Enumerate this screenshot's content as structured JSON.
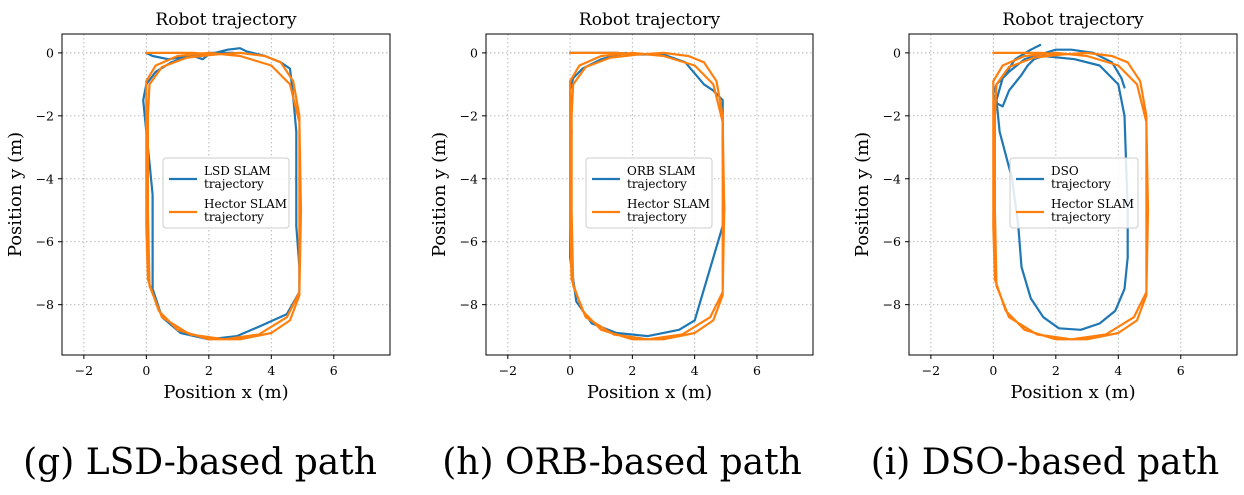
{
  "colors": {
    "series_a": "#1f77b4",
    "series_b": "#ff7f0e",
    "grid": "#b0b0b0"
  },
  "captions": [
    "(g) LSD-based path",
    "(h) ORB-based path",
    "(i) DSO-based path"
  ],
  "chart_data": [
    {
      "type": "line",
      "title": "Robot trajectory",
      "xlabel": "Position x (m)",
      "ylabel": "Position y (m)",
      "xlim": [
        -2.7,
        7.8
      ],
      "ylim": [
        -9.6,
        0.6
      ],
      "xticks": [
        -2,
        0,
        2,
        4,
        6
      ],
      "yticks": [
        0,
        -2,
        -4,
        -6,
        -8
      ],
      "tick_labels_x": [
        "−2",
        "0",
        "2",
        "4",
        "6"
      ],
      "tick_labels_y": [
        "0",
        "−2",
        "−4",
        "−6",
        "−8"
      ],
      "grid": true,
      "legend": "center-left",
      "series": [
        {
          "name": "LSD SLAM trajectory",
          "legend_lines": [
            "LSD SLAM",
            "trajectory"
          ],
          "color": "#1f77b4",
          "x": [
            0.0,
            0.0,
            0.2,
            0.7,
            1.5,
            1.8,
            2.0,
            2.6,
            3.0,
            3.2,
            3.8,
            4.3,
            4.6,
            4.7,
            4.8,
            4.8,
            4.8,
            4.9,
            4.9,
            4.5,
            3.6,
            2.9,
            2.0,
            1.1,
            0.5,
            0.2,
            0.2,
            0.2,
            0.1,
            0.0,
            -0.1,
            0.0,
            0.3,
            0.8,
            1.4,
            2.0,
            2.8
          ],
          "y": [
            0.0,
            0.0,
            -0.1,
            -0.2,
            -0.1,
            -0.2,
            -0.05,
            0.1,
            0.15,
            0.05,
            -0.1,
            -0.3,
            -0.5,
            -1.4,
            -2.5,
            -4.0,
            -5.5,
            -6.8,
            -7.6,
            -8.3,
            -8.7,
            -9.0,
            -9.1,
            -8.9,
            -8.4,
            -7.5,
            -6.0,
            -4.5,
            -3.5,
            -2.5,
            -1.5,
            -1.0,
            -0.6,
            -0.3,
            -0.1,
            0.0,
            0.0
          ]
        },
        {
          "name": "Hector SLAM trajectory",
          "legend_lines": [
            "Hector SLAM",
            "trajectory"
          ],
          "color": "#ff7f0e",
          "x": [
            0.0,
            1.5,
            2.2,
            3.0,
            3.8,
            4.3,
            4.7,
            4.9,
            4.9,
            4.9,
            4.9,
            4.6,
            4.0,
            3.0,
            2.0,
            1.0,
            0.4,
            0.05,
            0.0,
            0.0,
            0.0,
            0.0,
            0.3,
            1.0,
            2.0,
            3.0,
            4.0,
            4.6,
            4.9,
            4.95,
            4.9,
            4.5,
            3.6,
            2.5,
            1.4,
            0.5,
            0.1,
            0.05,
            0.05,
            0.1,
            0.5,
            1.3,
            2.2
          ],
          "y": [
            0.0,
            0.0,
            -0.05,
            0.0,
            -0.1,
            -0.3,
            -0.9,
            -2.0,
            -4.0,
            -6.0,
            -7.7,
            -8.5,
            -8.9,
            -9.1,
            -9.1,
            -8.8,
            -8.2,
            -7.2,
            -5.5,
            -3.5,
            -1.5,
            -0.9,
            -0.4,
            -0.1,
            0.0,
            -0.1,
            -0.4,
            -1.0,
            -2.2,
            -5.0,
            -7.6,
            -8.4,
            -8.95,
            -9.1,
            -8.95,
            -8.4,
            -7.4,
            -5.0,
            -2.0,
            -1.0,
            -0.45,
            -0.15,
            -0.05
          ]
        }
      ]
    },
    {
      "type": "line",
      "title": "Robot trajectory",
      "xlabel": "Position x (m)",
      "ylabel": "Position y (m)",
      "xlim": [
        -2.7,
        7.8
      ],
      "ylim": [
        -9.6,
        0.6
      ],
      "xticks": [
        -2,
        0,
        2,
        4,
        6
      ],
      "yticks": [
        0,
        -2,
        -4,
        -6,
        -8
      ],
      "tick_labels_x": [
        "−2",
        "0",
        "2",
        "4",
        "6"
      ],
      "tick_labels_y": [
        "0",
        "−2",
        "−4",
        "−6",
        "−8"
      ],
      "grid": true,
      "legend": "center-left",
      "series": [
        {
          "name": "ORB SLAM trajectory",
          "legend_lines": [
            "ORB SLAM",
            "trajectory"
          ],
          "color": "#1f77b4",
          "x": [
            0.0,
            1.5,
            2.2,
            3.0,
            3.7,
            4.3,
            4.6,
            4.9,
            4.9,
            4.95,
            4.9,
            4.0,
            3.5,
            2.5,
            1.5,
            0.7,
            0.2,
            0.0,
            0.0,
            0.05,
            0.0,
            0.1,
            0.4,
            1.0,
            1.8
          ],
          "y": [
            0.0,
            0.0,
            -0.05,
            -0.05,
            -0.3,
            -1.0,
            -1.2,
            -1.5,
            -3.0,
            -5.0,
            -5.5,
            -8.5,
            -8.8,
            -9.0,
            -8.9,
            -8.6,
            -7.9,
            -6.5,
            -4.5,
            -2.5,
            -1.2,
            -0.8,
            -0.5,
            -0.2,
            0.0
          ]
        },
        {
          "name": "Hector SLAM trajectory",
          "legend_lines": [
            "Hector SLAM",
            "trajectory"
          ],
          "color": "#ff7f0e",
          "x": [
            0.0,
            1.5,
            2.2,
            3.0,
            3.8,
            4.3,
            4.7,
            4.9,
            4.9,
            4.9,
            4.9,
            4.6,
            4.0,
            3.0,
            2.0,
            1.0,
            0.4,
            0.05,
            0.0,
            0.0,
            0.0,
            0.0,
            0.3,
            1.0,
            2.0,
            3.0,
            4.0,
            4.6,
            4.9,
            4.95,
            4.9,
            4.5,
            3.6,
            2.5,
            1.4,
            0.5,
            0.1,
            0.05,
            0.05,
            0.1,
            0.5,
            1.3,
            2.2
          ],
          "y": [
            0.0,
            0.0,
            -0.05,
            0.0,
            -0.1,
            -0.3,
            -0.9,
            -2.0,
            -4.0,
            -6.0,
            -7.7,
            -8.5,
            -8.9,
            -9.1,
            -9.1,
            -8.8,
            -8.2,
            -7.2,
            -5.5,
            -3.5,
            -1.5,
            -0.9,
            -0.4,
            -0.1,
            0.0,
            -0.1,
            -0.4,
            -1.0,
            -2.2,
            -5.0,
            -7.6,
            -8.4,
            -8.95,
            -9.1,
            -8.95,
            -8.4,
            -7.4,
            -5.0,
            -2.0,
            -1.0,
            -0.45,
            -0.15,
            -0.05
          ]
        }
      ]
    },
    {
      "type": "line",
      "title": "Robot trajectory",
      "xlabel": "Position x (m)",
      "ylabel": "Position y (m)",
      "xlim": [
        -2.7,
        7.8
      ],
      "ylim": [
        -9.6,
        0.6
      ],
      "xticks": [
        -2,
        0,
        2,
        4,
        6
      ],
      "yticks": [
        0,
        -2,
        -4,
        -6,
        -8
      ],
      "tick_labels_x": [
        "−2",
        "0",
        "2",
        "4",
        "6"
      ],
      "tick_labels_y": [
        "0",
        "−2",
        "−4",
        "−6",
        "−8"
      ],
      "grid": true,
      "legend": "center-left",
      "series": [
        {
          "name": "DSO trajectory",
          "legend_lines": [
            "DSO",
            "trajectory"
          ],
          "color": "#1f77b4",
          "x": [
            1.5,
            1.2,
            0.7,
            0.3,
            0.1,
            0.2,
            0.6,
            0.8,
            0.9,
            1.2,
            1.6,
            2.1,
            2.8,
            3.4,
            3.9,
            4.2,
            4.3,
            4.3,
            4.25,
            4.2,
            4.0,
            3.4,
            2.6,
            1.6,
            1.3,
            1.1,
            0.9,
            0.5,
            0.3,
            0.1,
            0.0,
            0.1,
            0.5,
            1.0,
            2.0,
            2.5,
            3.2,
            3.8,
            4.1,
            4.2
          ],
          "y": [
            0.25,
            0.1,
            -0.2,
            -0.8,
            -1.5,
            -2.5,
            -4.0,
            -5.5,
            -6.8,
            -7.8,
            -8.4,
            -8.75,
            -8.8,
            -8.6,
            -8.2,
            -7.5,
            -6.5,
            -5.0,
            -3.5,
            -2.0,
            -1.0,
            -0.4,
            -0.2,
            -0.1,
            -0.2,
            -0.4,
            -0.7,
            -1.2,
            -1.7,
            -1.6,
            -1.3,
            -1.0,
            -0.6,
            -0.2,
            0.1,
            0.1,
            0.0,
            -0.3,
            -0.8,
            -1.1
          ]
        },
        {
          "name": "Hector SLAM trajectory",
          "legend_lines": [
            "Hector SLAM",
            "trajectory"
          ],
          "color": "#ff7f0e",
          "x": [
            0.0,
            1.5,
            2.2,
            3.0,
            3.8,
            4.3,
            4.7,
            4.9,
            4.9,
            4.9,
            4.9,
            4.6,
            4.0,
            3.0,
            2.0,
            1.0,
            0.4,
            0.05,
            0.0,
            0.0,
            0.0,
            0.0,
            0.3,
            1.0,
            2.0,
            3.0,
            4.0,
            4.6,
            4.9,
            4.95,
            4.9,
            4.5,
            3.6,
            2.5,
            1.4,
            0.5,
            0.1,
            0.05,
            0.05,
            0.1,
            0.5,
            1.3,
            2.2
          ],
          "y": [
            0.0,
            0.0,
            -0.05,
            0.0,
            -0.1,
            -0.3,
            -0.9,
            -2.0,
            -4.0,
            -6.0,
            -7.7,
            -8.5,
            -8.9,
            -9.1,
            -9.1,
            -8.8,
            -8.2,
            -7.2,
            -5.5,
            -3.5,
            -1.5,
            -0.9,
            -0.4,
            -0.1,
            0.0,
            -0.1,
            -0.4,
            -1.0,
            -2.2,
            -5.0,
            -7.6,
            -8.4,
            -8.95,
            -9.1,
            -8.95,
            -8.4,
            -7.4,
            -5.0,
            -2.0,
            -1.0,
            -0.45,
            -0.15,
            -0.05
          ]
        }
      ]
    }
  ]
}
